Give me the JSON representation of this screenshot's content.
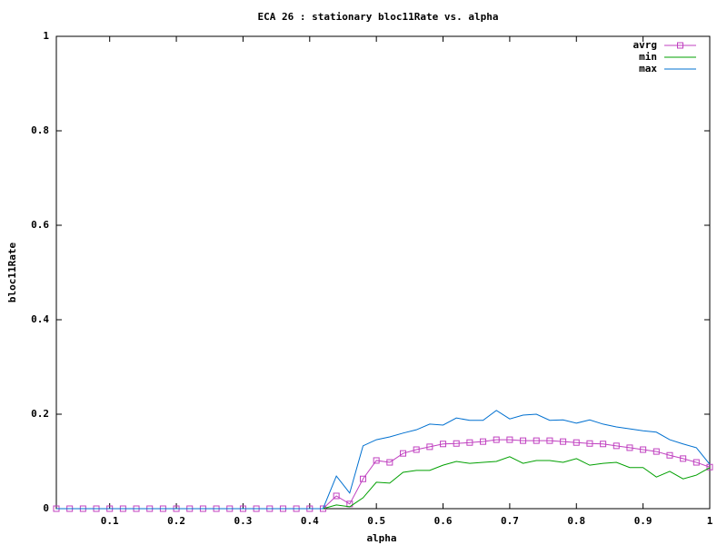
{
  "chart_data": {
    "type": "line",
    "title": "ECA 26 : stationary bloc11Rate vs. alpha",
    "x_label": "alpha",
    "y_label": "bloc11Rate",
    "x": [
      0.02,
      0.04,
      0.06,
      0.08,
      0.1,
      0.12,
      0.14,
      0.16,
      0.18,
      0.2,
      0.22,
      0.24,
      0.26,
      0.28,
      0.3,
      0.32,
      0.34,
      0.36,
      0.38,
      0.4,
      0.42,
      0.44,
      0.46,
      0.48,
      0.5,
      0.52,
      0.54,
      0.56,
      0.58,
      0.6,
      0.62,
      0.64,
      0.66,
      0.68,
      0.7,
      0.72,
      0.74,
      0.76,
      0.78,
      0.8,
      0.82,
      0.84,
      0.86,
      0.88,
      0.9,
      0.92,
      0.94,
      0.96,
      0.98,
      1
    ],
    "series": [
      {
        "name": "avrg",
        "color": "#c040c0",
        "marker": "square",
        "values": [
          0,
          0,
          0,
          0,
          0,
          0,
          0,
          0,
          0,
          0,
          0,
          0,
          0,
          0,
          0,
          0,
          0,
          0,
          0,
          0,
          0,
          0.027,
          0.01,
          0.063,
          0.102,
          0.098,
          0.117,
          0.125,
          0.131,
          0.137,
          0.138,
          0.14,
          0.142,
          0.146,
          0.146,
          0.144,
          0.144,
          0.144,
          0.142,
          0.14,
          0.138,
          0.137,
          0.133,
          0.129,
          0.125,
          0.121,
          0.113,
          0.106,
          0.098,
          0.088
        ]
      },
      {
        "name": "min",
        "color": "#00a000",
        "values": [
          0,
          0,
          0,
          0,
          0,
          0,
          0,
          0,
          0,
          0,
          0,
          0,
          0,
          0,
          0,
          0,
          0,
          0,
          0,
          0,
          0,
          0.008,
          0.004,
          0.023,
          0.056,
          0.054,
          0.077,
          0.081,
          0.081,
          0.092,
          0.1,
          0.096,
          0.098,
          0.1,
          0.11,
          0.096,
          0.102,
          0.102,
          0.098,
          0.106,
          0.092,
          0.096,
          0.098,
          0.087,
          0.087,
          0.067,
          0.079,
          0.063,
          0.071,
          0.087
        ]
      },
      {
        "name": "max",
        "color": "#0070d0",
        "values": [
          0,
          0,
          0,
          0,
          0,
          0,
          0,
          0,
          0,
          0,
          0,
          0,
          0,
          0,
          0,
          0,
          0,
          0,
          0,
          0,
          0,
          0.069,
          0.033,
          0.133,
          0.146,
          0.152,
          0.16,
          0.167,
          0.179,
          0.177,
          0.192,
          0.187,
          0.187,
          0.208,
          0.19,
          0.198,
          0.2,
          0.187,
          0.188,
          0.181,
          0.188,
          0.179,
          0.173,
          0.169,
          0.165,
          0.162,
          0.146,
          0.137,
          0.129,
          0.094
        ]
      }
    ],
    "xlim": [
      0.02,
      1
    ],
    "ylim": [
      0,
      1
    ],
    "xticks": [
      0.1,
      0.2,
      0.3,
      0.4,
      0.5,
      0.6,
      0.7,
      0.8,
      0.9,
      1
    ],
    "yticks": [
      0,
      0.2,
      0.4,
      0.6,
      0.8,
      1
    ],
    "grid": false,
    "legend": "top-right"
  }
}
